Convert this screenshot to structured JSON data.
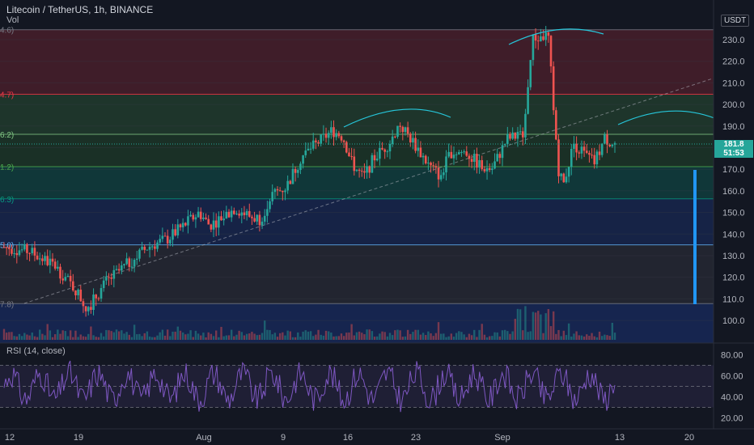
{
  "header": {
    "title": "Litecoin / TetherUS, 1h, BINANCE",
    "vol_label": "Vol",
    "currency": "USDT"
  },
  "price_badge": {
    "price": "181.8",
    "countdown": "51:53"
  },
  "rsi": {
    "label": "RSI (14, close)",
    "ticks": [
      "80.00",
      "60.00",
      "40.00",
      "20.00"
    ]
  },
  "colors": {
    "up": "#26a69a",
    "down": "#ef5350",
    "rsi_line": "#7e57c2",
    "arc": "#26c6da",
    "arrow": "#2196f3"
  },
  "chart_data": {
    "type": "candlestick",
    "ylim": [
      90,
      236
    ],
    "y_ticks": [
      100,
      110,
      120,
      130,
      140,
      150,
      160,
      170,
      180,
      190,
      200,
      210,
      220,
      230
    ],
    "x_ticks": [
      "12",
      "19",
      "Aug",
      "9",
      "16",
      "23",
      "Sep",
      "13",
      "20"
    ],
    "fib_labels": [
      "4.6)",
      "4.7)",
      "6.2)",
      "1.2)",
      "6.3)",
      "5.0)",
      "7.8)"
    ],
    "fib_levels": [
      234.6,
      204.7,
      186.2,
      171.2,
      156.3,
      135.0,
      107.8
    ],
    "price_path": [
      [
        0,
        134
      ],
      [
        5,
        132
      ],
      [
        10,
        125
      ],
      [
        14,
        114
      ],
      [
        16,
        106
      ],
      [
        17,
        108
      ],
      [
        20,
        118
      ],
      [
        24,
        126
      ],
      [
        28,
        134
      ],
      [
        32,
        138
      ],
      [
        36,
        146
      ],
      [
        38,
        150
      ],
      [
        40,
        144
      ],
      [
        42,
        147
      ],
      [
        45,
        152
      ],
      [
        48,
        148
      ],
      [
        50,
        147
      ],
      [
        52,
        158
      ],
      [
        55,
        162
      ],
      [
        58,
        176
      ],
      [
        61,
        182
      ],
      [
        64,
        188
      ],
      [
        66,
        185
      ],
      [
        68,
        172
      ],
      [
        70,
        166
      ],
      [
        72,
        175
      ],
      [
        75,
        182
      ],
      [
        77,
        191
      ],
      [
        79,
        185
      ],
      [
        81,
        178
      ],
      [
        83,
        171
      ],
      [
        85,
        167
      ],
      [
        87,
        178
      ],
      [
        90,
        178
      ],
      [
        93,
        171
      ],
      [
        95,
        170
      ],
      [
        98,
        184
      ],
      [
        101,
        186
      ],
      [
        103,
        230
      ],
      [
        106,
        232
      ],
      [
        108,
        170
      ],
      [
        109,
        163
      ],
      [
        111,
        182
      ],
      [
        113,
        177
      ],
      [
        115,
        173
      ],
      [
        117,
        184
      ],
      [
        119,
        182
      ]
    ]
  }
}
